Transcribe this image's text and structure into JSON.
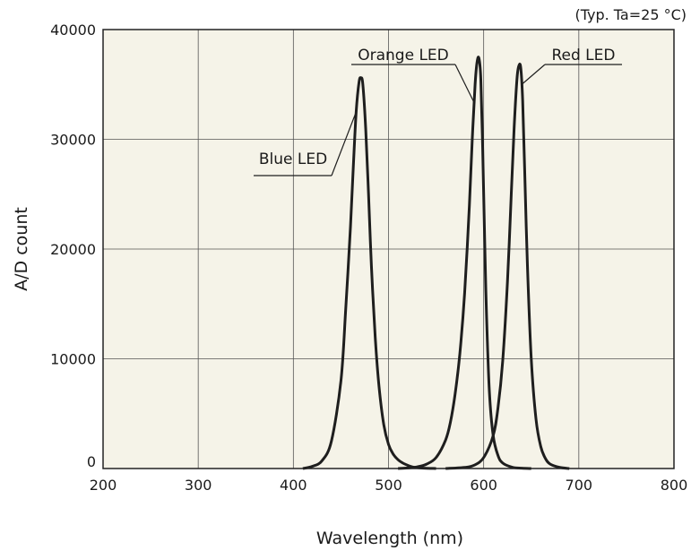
{
  "chart_data": {
    "type": "line",
    "note": "(Typ. Ta=25 °C)",
    "xlabel": "Wavelength (nm)",
    "ylabel": "A/D count",
    "xlim": [
      200,
      800
    ],
    "ylim": [
      0,
      40000
    ],
    "x_ticks": [
      "200",
      "300",
      "400",
      "500",
      "600",
      "700",
      "800"
    ],
    "y_ticks": [
      "0",
      "10000",
      "20000",
      "30000",
      "40000"
    ],
    "grid": true,
    "series": [
      {
        "name": "Blue LED",
        "x": [
          410,
          420,
          430,
          440,
          450,
          455,
          460,
          463,
          466,
          469,
          471,
          473,
          476,
          479,
          482,
          486,
          490,
          495,
          500,
          505,
          510,
          515,
          520,
          525,
          530,
          535,
          540,
          545,
          550
        ],
        "y": [
          0,
          200,
          700,
          2500,
          8000,
          14500,
          22000,
          27500,
          32500,
          35200,
          35600,
          35000,
          31000,
          25000,
          18500,
          12000,
          7500,
          4000,
          2200,
          1300,
          800,
          500,
          300,
          150,
          80,
          40,
          20,
          10,
          0
        ]
      },
      {
        "name": "Orange LED",
        "x": [
          510,
          520,
          530,
          540,
          550,
          560,
          565,
          570,
          575,
          580,
          585,
          588,
          591,
          593,
          595,
          597,
          599,
          601,
          603,
          606,
          610,
          615,
          620,
          630,
          640,
          650
        ],
        "y": [
          0,
          50,
          150,
          400,
          1000,
          2600,
          4200,
          6800,
          10500,
          16000,
          24000,
          30000,
          35000,
          37000,
          37400,
          35500,
          29000,
          21000,
          14000,
          7000,
          3000,
          1200,
          500,
          120,
          30,
          0
        ]
      },
      {
        "name": "Red LED",
        "x": [
          560,
          580,
          590,
          600,
          610,
          615,
          620,
          625,
          629,
          632,
          635,
          637,
          639,
          641,
          643,
          646,
          650,
          655,
          660,
          665,
          670,
          680,
          690
        ],
        "y": [
          0,
          100,
          300,
          1000,
          3000,
          5500,
          9800,
          17000,
          25000,
          31000,
          35500,
          36700,
          36500,
          33500,
          27500,
          18500,
          10000,
          4500,
          2000,
          900,
          400,
          100,
          0
        ]
      }
    ],
    "annotations": [
      {
        "text": "Blue LED",
        "series": 0,
        "at_x": 466
      },
      {
        "text": "Orange LED",
        "series": 1,
        "at_x": 590
      },
      {
        "text": "Red LED",
        "series": 2,
        "at_x": 640
      }
    ]
  }
}
